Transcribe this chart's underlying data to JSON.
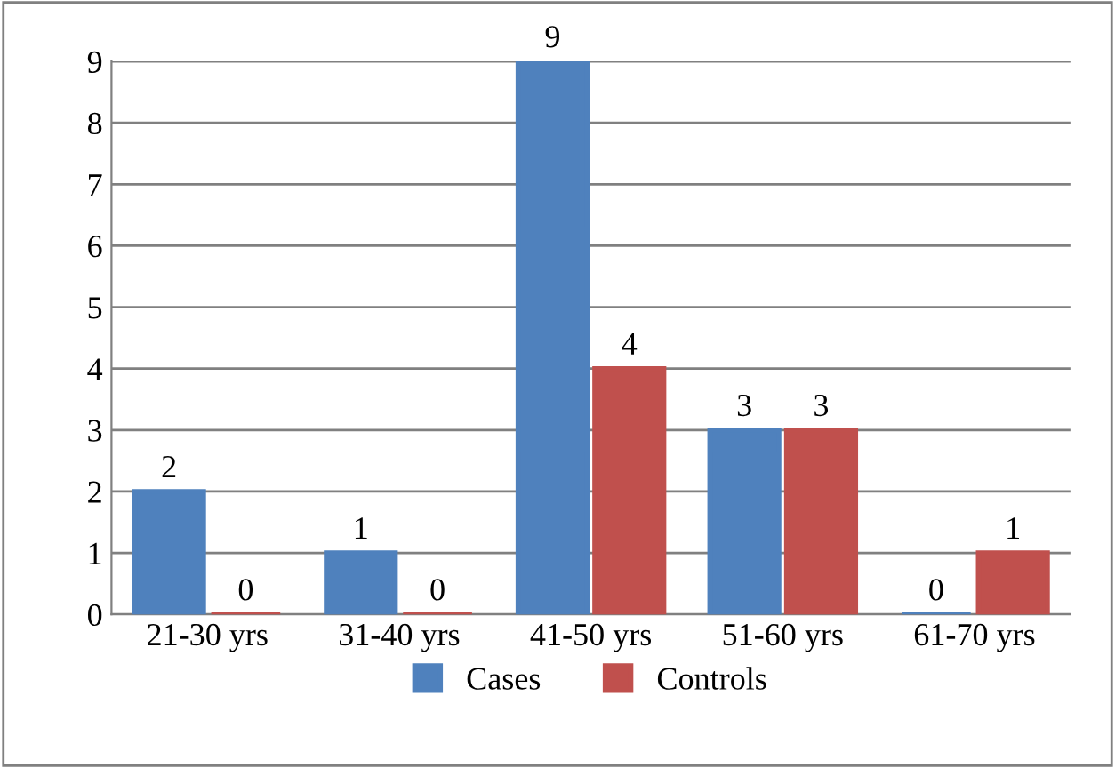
{
  "chart_data": {
    "type": "bar",
    "categories": [
      "21-30 yrs",
      "31-40 yrs",
      "41-50 yrs",
      "51-60 yrs",
      "61-70 yrs"
    ],
    "series": [
      {
        "name": "Cases",
        "color": "#4f81bd",
        "values": [
          2,
          1,
          9,
          3,
          0
        ]
      },
      {
        "name": "Controls",
        "color": "#c0504d",
        "values": [
          0,
          0,
          4,
          3,
          1
        ]
      }
    ],
    "ylim": [
      0,
      9
    ],
    "yticks": [
      0,
      1,
      2,
      3,
      4,
      5,
      6,
      7,
      8,
      9
    ],
    "grid": "y",
    "legend": "bottom",
    "data_labels": true
  }
}
